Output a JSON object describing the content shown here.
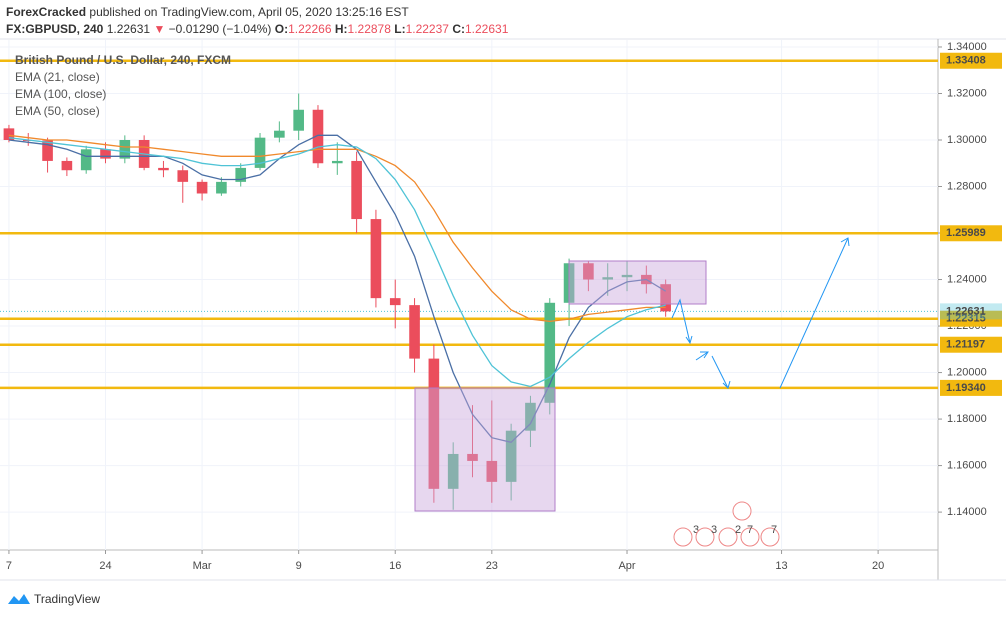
{
  "header": {
    "author": "ForexCracked",
    "published": "published on TradingView.com, April 05, 2020 13:25:16 EST"
  },
  "quote": {
    "symbol": "FX:GBPUSD, 240",
    "price": "1.22631",
    "arrow": "▼",
    "change": "−0.01290 (−1.04%)",
    "open_label": "O:",
    "open": "1.22266",
    "high_label": "H:",
    "high": "1.22878",
    "low_label": "L:",
    "low": "1.22237",
    "close_label": "C:",
    "close": "1.22631"
  },
  "chart_data": {
    "type": "candlestick",
    "title": "British Pound / U.S. Dollar, 240, FXCM",
    "x": [
      0,
      1,
      2,
      3,
      4,
      5,
      6,
      7,
      8,
      9,
      10,
      11,
      12,
      13,
      14,
      15,
      16,
      17,
      18,
      19,
      20,
      21,
      22,
      23,
      24,
      25,
      26,
      27,
      28,
      29,
      30,
      31,
      32,
      33,
      34
    ],
    "open": [
      1.305,
      1.3,
      1.2998,
      1.291,
      1.287,
      1.296,
      1.292,
      1.3,
      1.288,
      1.287,
      1.282,
      1.277,
      1.282,
      1.288,
      1.301,
      1.304,
      1.313,
      1.29,
      1.291,
      1.266,
      1.232,
      1.229,
      1.206,
      1.15,
      1.165,
      1.162,
      1.153,
      1.175,
      1.187,
      1.23,
      1.247,
      1.24,
      1.241,
      1.242,
      1.238
    ],
    "high": [
      1.3065,
      1.303,
      1.301,
      1.2925,
      1.2975,
      1.299,
      1.302,
      1.302,
      1.291,
      1.289,
      1.283,
      1.284,
      1.29,
      1.303,
      1.308,
      1.32,
      1.315,
      1.299,
      1.295,
      1.27,
      1.24,
      1.232,
      1.212,
      1.17,
      1.186,
      1.188,
      1.178,
      1.19,
      1.232,
      1.249,
      1.248,
      1.247,
      1.248,
      1.246,
      1.24
    ],
    "low": [
      1.299,
      1.2975,
      1.286,
      1.2845,
      1.2855,
      1.29,
      1.29,
      1.287,
      1.284,
      1.273,
      1.274,
      1.276,
      1.28,
      1.287,
      1.299,
      1.3,
      1.288,
      1.285,
      1.26,
      1.228,
      1.219,
      1.2,
      1.144,
      1.141,
      1.155,
      1.144,
      1.145,
      1.168,
      1.182,
      1.22,
      1.235,
      1.233,
      1.235,
      1.234,
      1.224
    ],
    "close": [
      1.3,
      1.2998,
      1.291,
      1.287,
      1.296,
      1.292,
      1.3,
      1.288,
      1.287,
      1.282,
      1.277,
      1.282,
      1.288,
      1.301,
      1.304,
      1.313,
      1.29,
      1.291,
      1.266,
      1.232,
      1.229,
      1.206,
      1.15,
      1.165,
      1.162,
      1.153,
      1.175,
      1.187,
      1.23,
      1.247,
      1.24,
      1.241,
      1.242,
      1.238,
      1.2263
    ],
    "up_color": "#53b987",
    "down_color": "#eb4d5c",
    "series": [
      {
        "name": "EMA (21, close)",
        "color": "#4a6fa5",
        "values": [
          1.3,
          1.299,
          1.298,
          1.296,
          1.293,
          1.293,
          1.293,
          1.293,
          1.293,
          1.29,
          1.285,
          1.283,
          1.283,
          1.285,
          1.292,
          1.298,
          1.302,
          1.302,
          1.296,
          1.282,
          1.268,
          1.25,
          1.224,
          1.2,
          1.182,
          1.172,
          1.17,
          1.178,
          1.195,
          1.215,
          1.228,
          1.235,
          1.239,
          1.24,
          1.235
        ]
      },
      {
        "name": "EMA (100, close)",
        "color": "#f0892c",
        "values": [
          1.302,
          1.301,
          1.3,
          1.3,
          1.299,
          1.298,
          1.297,
          1.297,
          1.296,
          1.295,
          1.294,
          1.293,
          1.293,
          1.293,
          1.294,
          1.295,
          1.296,
          1.296,
          1.296,
          1.293,
          1.289,
          1.282,
          1.27,
          1.256,
          1.245,
          1.235,
          1.227,
          1.223,
          1.222,
          1.223,
          1.225,
          1.226,
          1.227,
          1.228,
          1.228
        ]
      },
      {
        "name": "EMA (50, close)",
        "color": "#4fc3d6",
        "values": [
          1.301,
          1.3,
          1.299,
          1.298,
          1.297,
          1.296,
          1.295,
          1.294,
          1.293,
          1.292,
          1.29,
          1.289,
          1.289,
          1.29,
          1.292,
          1.294,
          1.297,
          1.298,
          1.297,
          1.292,
          1.283,
          1.27,
          1.252,
          1.233,
          1.216,
          1.203,
          1.196,
          1.194,
          1.198,
          1.206,
          1.213,
          1.219,
          1.224,
          1.227,
          1.229
        ]
      }
    ],
    "levels": {
      "values": [
        1.33408,
        1.25989,
        1.22315,
        1.21197,
        1.1934
      ],
      "value_labels": [
        "1.33408",
        "1.25989",
        "1.22315",
        "1.21197",
        "1.19340"
      ],
      "color": "#f2b90f"
    },
    "last_price": {
      "value": 1.22631,
      "label": "1.22631",
      "color": "#4fc3d6"
    },
    "xlim": [
      -0.1,
      48.1
    ],
    "ylim": [
      1.1237,
      1.343
    ],
    "xticks": [
      {
        "value": 0,
        "label": "7"
      },
      {
        "value": 5,
        "label": "24"
      },
      {
        "value": 10,
        "label": "Mar"
      },
      {
        "value": 15,
        "label": "9"
      },
      {
        "value": 20,
        "label": "16"
      },
      {
        "value": 25,
        "label": "23"
      },
      {
        "value": 32,
        "label": "Apr"
      },
      {
        "value": 40,
        "label": "13"
      },
      {
        "value": 45,
        "label": "20"
      }
    ],
    "yticks": [
      {
        "value": 1.34,
        "label": "1.34000"
      },
      {
        "value": 1.32,
        "label": "1.32000"
      },
      {
        "value": 1.3,
        "label": "1.30000"
      },
      {
        "value": 1.28,
        "label": "1.28000"
      },
      {
        "value": 1.26,
        "label": "1.26000"
      },
      {
        "value": 1.24,
        "label": "1.24000"
      },
      {
        "value": 1.22,
        "label": "1.22000"
      },
      {
        "value": 1.2,
        "label": "1.20000"
      },
      {
        "value": 1.18,
        "label": "1.18000"
      },
      {
        "value": 1.16,
        "label": "1.16000"
      },
      {
        "value": 1.14,
        "label": "1.14000"
      }
    ],
    "grid": true
  },
  "events": [
    "3",
    "3",
    "2",
    "7",
    "7"
  ],
  "brand": "TradingView"
}
